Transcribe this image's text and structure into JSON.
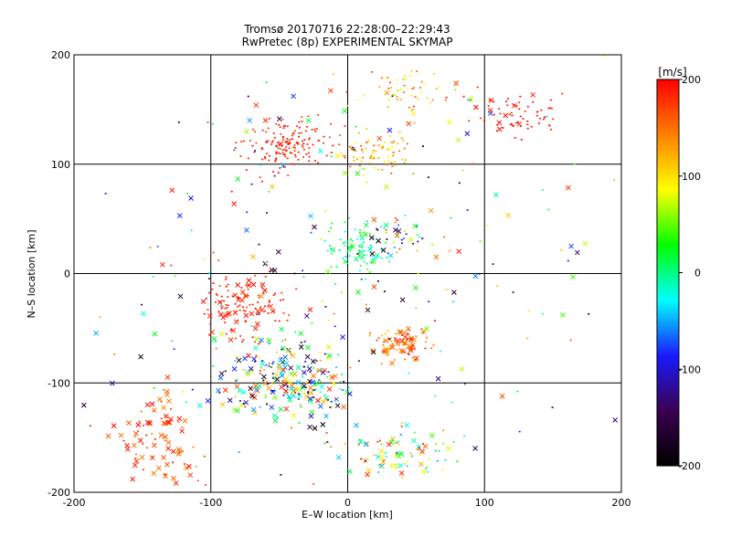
{
  "chart_data": {
    "type": "scatter",
    "title": "Tromsø 20170716 22:28:00–22:29:43",
    "subtitle": "RwPretec (8p) EXPERIMENTAL SKYMAP",
    "xlabel": "E–W location [km]",
    "ylabel": "N–S location [km]",
    "xlim": [
      -200,
      200
    ],
    "ylim": [
      -200,
      200
    ],
    "xticks": [
      -200,
      -100,
      0,
      100,
      200
    ],
    "yticks": [
      -200,
      -100,
      0,
      100,
      200
    ],
    "grid": true,
    "marker_types": [
      "small-dot",
      "cross"
    ],
    "colorbar": {
      "label": "[m/s]",
      "range": [
        -200,
        200
      ],
      "ticks": [
        200,
        100,
        0,
        -100,
        -200
      ],
      "colors": [
        "#000000",
        "#3a0050",
        "#1a1aff",
        "#00ffff",
        "#00ff00",
        "#ffff00",
        "#ff8000",
        "#ff0000"
      ]
    },
    "clusters": [
      {
        "cx": -45,
        "cy": 118,
        "rx": 30,
        "ry": 22,
        "n": 160,
        "vmin": 170,
        "vmax": 200,
        "cross": 0.03
      },
      {
        "cx": 20,
        "cy": 110,
        "rx": 25,
        "ry": 20,
        "n": 90,
        "vmin": 80,
        "vmax": 170,
        "cross": 0.03
      },
      {
        "cx": 40,
        "cy": 165,
        "rx": 40,
        "ry": 20,
        "n": 60,
        "vmin": 50,
        "vmax": 180,
        "cross": 0.05
      },
      {
        "cx": 120,
        "cy": 145,
        "rx": 35,
        "ry": 22,
        "n": 70,
        "vmin": 180,
        "vmax": 200,
        "cross": 0.05
      },
      {
        "cx": 5,
        "cy": 25,
        "rx": 20,
        "ry": 25,
        "n": 90,
        "vmin": -30,
        "vmax": 50,
        "cross": 0.15
      },
      {
        "cx": 40,
        "cy": 35,
        "rx": 25,
        "ry": 20,
        "n": 40,
        "vmin": -200,
        "vmax": 200,
        "cross": 0.3
      },
      {
        "cx": -75,
        "cy": -30,
        "rx": 30,
        "ry": 30,
        "n": 130,
        "vmin": 170,
        "vmax": 200,
        "cross": 0.25
      },
      {
        "cx": -45,
        "cy": -100,
        "rx": 45,
        "ry": 35,
        "n": 230,
        "vmin": -200,
        "vmax": 200,
        "cross": 0.55
      },
      {
        "cx": 40,
        "cy": -65,
        "rx": 20,
        "ry": 15,
        "n": 90,
        "vmin": 110,
        "vmax": 200,
        "cross": 0.3
      },
      {
        "cx": 35,
        "cy": -165,
        "rx": 45,
        "ry": 25,
        "n": 90,
        "vmin": -60,
        "vmax": 200,
        "cross": 0.35
      },
      {
        "cx": -140,
        "cy": -150,
        "rx": 35,
        "ry": 45,
        "n": 90,
        "vmin": 140,
        "vmax": 200,
        "cross": 0.6
      },
      {
        "cx": 0,
        "cy": 0,
        "rx": 190,
        "ry": 190,
        "n": 260,
        "vmin": -200,
        "vmax": 200,
        "cross": 0.35
      }
    ]
  }
}
